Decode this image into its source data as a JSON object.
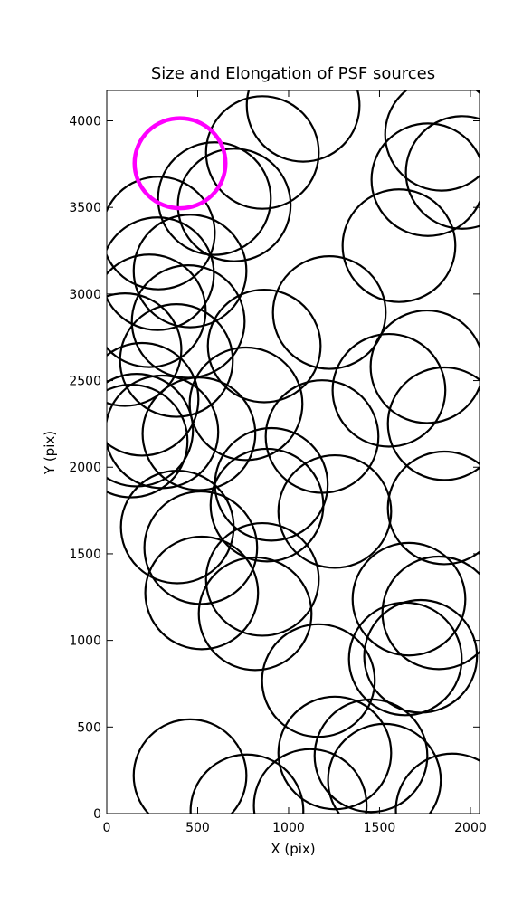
{
  "chart_data": {
    "type": "ellipse",
    "title": "Size and Elongation of PSF sources",
    "x_label": "X (pix)",
    "y_label": "Y (pix)",
    "xlim": [
      0,
      2050
    ],
    "ylim": [
      0,
      4175
    ],
    "xticks": [
      0,
      500,
      1000,
      1500,
      2000
    ],
    "yticks": [
      0,
      500,
      1000,
      1500,
      2000,
      2500,
      3000,
      3500,
      4000
    ],
    "series": [
      {
        "color": "#000000",
        "line_width": 2.2,
        "x": [
          1080,
          1841,
          1955,
          1766,
          856,
          701,
          592,
          284,
          458,
          279,
          1607,
          1224,
          234,
          448,
          866,
          100,
          1761,
          1552,
          383,
          1856,
          766,
          1184,
          194,
          507,
          164,
          303,
          134,
          905,
          881,
          1254,
          388,
          517,
          1856,
          522,
          856,
          1662,
          1826,
          816,
          1726,
          1642,
          1164,
          1453,
          1254,
          458,
          771,
          1527,
          1900,
          1119
        ],
        "y": [
          4089,
          3922,
          3702,
          3660,
          3817,
          3514,
          3551,
          3352,
          3133,
          3117,
          3279,
          2893,
          2903,
          2841,
          2700,
          2679,
          2580,
          2444,
          2616,
          2251,
          2366,
          2177,
          2392,
          2193,
          2214,
          2204,
          2151,
          1901,
          1781,
          1744,
          1655,
          1535,
          1765,
          1274,
          1352,
          1238,
          1159,
          1154,
          908,
          893,
          768,
          334,
          350,
          219,
          16,
          193,
          21,
          47
        ],
        "widths": [
          620,
          620,
          620,
          620,
          620,
          620,
          620,
          620,
          620,
          620,
          620,
          620,
          620,
          620,
          620,
          620,
          620,
          620,
          620,
          620,
          620,
          620,
          620,
          620,
          620,
          620,
          620,
          620,
          620,
          620,
          620,
          620,
          620,
          620,
          620,
          620,
          620,
          620,
          620,
          620,
          620,
          620,
          620,
          620,
          620,
          620,
          620,
          620
        ],
        "heights": [
          650,
          650,
          650,
          650,
          650,
          650,
          650,
          650,
          650,
          650,
          650,
          650,
          650,
          650,
          650,
          650,
          650,
          650,
          650,
          650,
          650,
          650,
          650,
          650,
          650,
          650,
          650,
          650,
          650,
          650,
          650,
          650,
          650,
          650,
          650,
          650,
          650,
          650,
          650,
          650,
          650,
          650,
          650,
          650,
          650,
          650,
          650,
          650
        ]
      },
      {
        "color": "#ff00ff",
        "line_width": 4.5,
        "x": [
          403
        ],
        "y": [
          3755
        ],
        "widths": [
          500
        ],
        "heights": [
          520
        ]
      }
    ]
  }
}
